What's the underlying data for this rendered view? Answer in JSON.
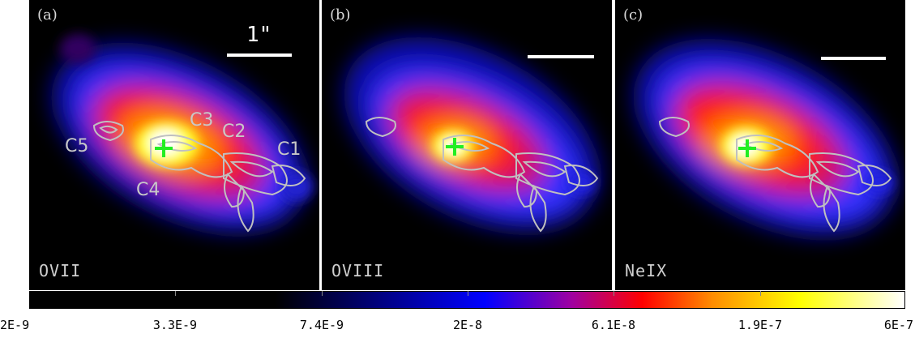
{
  "panels": [
    {
      "label": "(a)",
      "ion": "OVII",
      "scale_text": "1\""
    },
    {
      "label": "(b)",
      "ion": "OVIII",
      "scale_text": ""
    },
    {
      "label": "(c)",
      "ion": "NeIX",
      "scale_text": ""
    }
  ],
  "components": {
    "c1": "C1",
    "c2": "C2",
    "c3": "C3",
    "c4": "C4",
    "c5": "C5"
  },
  "colorbar": {
    "ticks": [
      "2E-9",
      "3.3E-9",
      "7.4E-9",
      "2E-8",
      "6.1E-8",
      "1.9E-7",
      "6E-7"
    ],
    "colors": [
      "#000000",
      "#000000",
      "#000080",
      "#0000ff",
      "#a000a0",
      "#ff0000",
      "#ff8c00",
      "#ffff00",
      "#ffffff"
    ]
  },
  "colors": {
    "contour": "#c0c0c0",
    "nucleus_cross": "#22ee22",
    "scale_bar": "#ffffff"
  }
}
